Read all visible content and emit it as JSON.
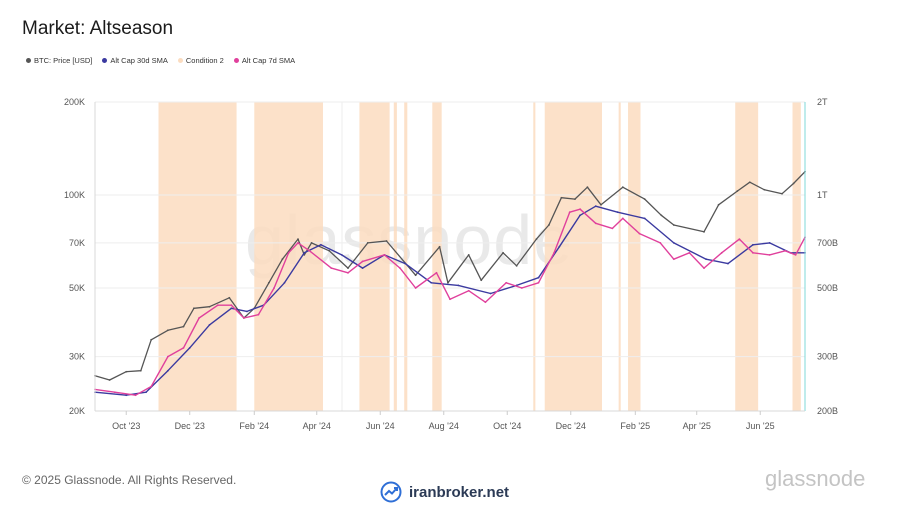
{
  "title": "Market: Altseason",
  "legend": [
    {
      "label": "BTC: Price [USD]",
      "color": "#555555"
    },
    {
      "label": "Alt Cap 30d SMA",
      "color": "#3b3aa0"
    },
    {
      "label": "Condition 2",
      "color": "#fbdcc0"
    },
    {
      "label": "Alt Cap 7d SMA",
      "color": "#e0409c"
    }
  ],
  "footer": {
    "copyright": "© 2025 Glassnode. All Rights Reserved.",
    "brand": "iranbroker.net",
    "logo": "glassnode",
    "watermark": "glassnode"
  },
  "chart_data": {
    "type": "line",
    "scale": "log",
    "x_range": [
      "2023-09-01",
      "2025-07-14"
    ],
    "x_ticks": [
      {
        "date": "2023-10-01",
        "label": "Oct '23"
      },
      {
        "date": "2023-12-01",
        "label": "Dec '23"
      },
      {
        "date": "2024-02-01",
        "label": "Feb '24"
      },
      {
        "date": "2024-04-01",
        "label": "Apr '24"
      },
      {
        "date": "2024-06-01",
        "label": "Jun '24"
      },
      {
        "date": "2024-08-01",
        "label": "Aug '24"
      },
      {
        "date": "2024-10-01",
        "label": "Oct '24"
      },
      {
        "date": "2024-12-01",
        "label": "Dec '24"
      },
      {
        "date": "2025-02-01",
        "label": "Feb '25"
      },
      {
        "date": "2025-04-01",
        "label": "Apr '25"
      },
      {
        "date": "2025-06-01",
        "label": "Jun '25"
      }
    ],
    "y_left": {
      "range": [
        20000,
        200000
      ],
      "ticks": [
        {
          "value": 20000,
          "label": "20K"
        },
        {
          "value": 30000,
          "label": "30K"
        },
        {
          "value": 50000,
          "label": "50K"
        },
        {
          "value": 70000,
          "label": "70K"
        },
        {
          "value": 100000,
          "label": "100K"
        },
        {
          "value": 200000,
          "label": "200K"
        }
      ]
    },
    "y_right": {
      "range": [
        200000000000,
        2000000000000
      ],
      "ticks": [
        {
          "value": 200000000000,
          "label": "200B"
        },
        {
          "value": 300000000000,
          "label": "300B"
        },
        {
          "value": 500000000000,
          "label": "500B"
        },
        {
          "value": 700000000000,
          "label": "700B"
        },
        {
          "value": 1000000000000,
          "label": "1T"
        },
        {
          "value": 2000000000000,
          "label": "2T"
        }
      ]
    },
    "condition_periods": [
      [
        "2023-11-01",
        "2024-01-15"
      ],
      [
        "2024-02-01",
        "2024-04-07"
      ],
      [
        "2024-05-12",
        "2024-06-10"
      ],
      [
        "2024-06-14",
        "2024-06-17"
      ],
      [
        "2024-06-24",
        "2024-06-27"
      ],
      [
        "2024-07-21",
        "2024-07-30"
      ],
      [
        "2024-10-26",
        "2024-10-28"
      ],
      [
        "2024-11-06",
        "2024-12-31"
      ],
      [
        "2025-01-16",
        "2025-01-18"
      ],
      [
        "2025-01-25",
        "2025-02-06"
      ],
      [
        "2025-05-08",
        "2025-05-30"
      ],
      [
        "2025-07-02",
        "2025-07-10"
      ]
    ],
    "series": [
      {
        "name": "BTC: Price [USD]",
        "axis": "left",
        "color": "#555555",
        "points": [
          [
            "2023-09-01",
            26000
          ],
          [
            "2023-09-15",
            25200
          ],
          [
            "2023-10-01",
            26800
          ],
          [
            "2023-10-15",
            27000
          ],
          [
            "2023-10-25",
            34000
          ],
          [
            "2023-11-10",
            36500
          ],
          [
            "2023-11-25",
            37500
          ],
          [
            "2023-12-05",
            43000
          ],
          [
            "2023-12-20",
            43500
          ],
          [
            "2024-01-08",
            46500
          ],
          [
            "2024-01-22",
            40000
          ],
          [
            "2024-02-01",
            43000
          ],
          [
            "2024-02-15",
            52000
          ],
          [
            "2024-02-28",
            62000
          ],
          [
            "2024-03-14",
            72000
          ],
          [
            "2024-03-20",
            64000
          ],
          [
            "2024-03-27",
            70000
          ],
          [
            "2024-04-13",
            66000
          ],
          [
            "2024-05-01",
            58000
          ],
          [
            "2024-05-20",
            70000
          ],
          [
            "2024-06-07",
            71000
          ],
          [
            "2024-07-05",
            55000
          ],
          [
            "2024-07-28",
            68000
          ],
          [
            "2024-08-05",
            52000
          ],
          [
            "2024-08-25",
            64000
          ],
          [
            "2024-09-06",
            53000
          ],
          [
            "2024-09-27",
            65000
          ],
          [
            "2024-10-10",
            59000
          ],
          [
            "2024-10-29",
            72000
          ],
          [
            "2024-11-10",
            80000
          ],
          [
            "2024-11-22",
            98000
          ],
          [
            "2024-12-05",
            97000
          ],
          [
            "2024-12-17",
            106000
          ],
          [
            "2024-12-30",
            93000
          ],
          [
            "2025-01-20",
            106000
          ],
          [
            "2025-02-10",
            97000
          ],
          [
            "2025-02-26",
            86000
          ],
          [
            "2025-03-10",
            80000
          ],
          [
            "2025-04-08",
            76000
          ],
          [
            "2025-04-22",
            93000
          ],
          [
            "2025-05-10",
            103000
          ],
          [
            "2025-05-22",
            110000
          ],
          [
            "2025-06-05",
            104000
          ],
          [
            "2025-06-22",
            101000
          ],
          [
            "2025-07-03",
            109000
          ],
          [
            "2025-07-14",
            119000
          ]
        ]
      },
      {
        "name": "Alt Cap 30d SMA",
        "axis": "right",
        "color": "#3b3aa0",
        "points": [
          [
            "2023-09-01",
            230000000000
          ],
          [
            "2023-10-01",
            225000000000
          ],
          [
            "2023-10-20",
            230000000000
          ],
          [
            "2023-11-10",
            270000000000
          ],
          [
            "2023-12-01",
            320000000000
          ],
          [
            "2023-12-20",
            380000000000
          ],
          [
            "2024-01-10",
            430000000000
          ],
          [
            "2024-01-25",
            420000000000
          ],
          [
            "2024-02-10",
            440000000000
          ],
          [
            "2024-03-01",
            520000000000
          ],
          [
            "2024-03-20",
            650000000000
          ],
          [
            "2024-04-05",
            690000000000
          ],
          [
            "2024-04-25",
            640000000000
          ],
          [
            "2024-05-15",
            580000000000
          ],
          [
            "2024-06-05",
            640000000000
          ],
          [
            "2024-06-25",
            600000000000
          ],
          [
            "2024-07-20",
            520000000000
          ],
          [
            "2024-08-15",
            510000000000
          ],
          [
            "2024-09-15",
            480000000000
          ],
          [
            "2024-10-10",
            510000000000
          ],
          [
            "2024-10-31",
            540000000000
          ],
          [
            "2024-11-20",
            680000000000
          ],
          [
            "2024-12-10",
            860000000000
          ],
          [
            "2024-12-25",
            920000000000
          ],
          [
            "2025-01-15",
            880000000000
          ],
          [
            "2025-02-10",
            840000000000
          ],
          [
            "2025-03-10",
            700000000000
          ],
          [
            "2025-04-10",
            620000000000
          ],
          [
            "2025-05-01",
            600000000000
          ],
          [
            "2025-05-25",
            690000000000
          ],
          [
            "2025-06-10",
            700000000000
          ],
          [
            "2025-06-30",
            650000000000
          ],
          [
            "2025-07-14",
            650000000000
          ]
        ]
      },
      {
        "name": "Alt Cap 7d SMA",
        "axis": "right",
        "color": "#e0409c",
        "points": [
          [
            "2023-09-01",
            235000000000
          ],
          [
            "2023-09-20",
            230000000000
          ],
          [
            "2023-10-10",
            225000000000
          ],
          [
            "2023-10-25",
            240000000000
          ],
          [
            "2023-11-10",
            300000000000
          ],
          [
            "2023-11-25",
            320000000000
          ],
          [
            "2023-12-10",
            400000000000
          ],
          [
            "2023-12-28",
            440000000000
          ],
          [
            "2024-01-10",
            440000000000
          ],
          [
            "2024-01-22",
            400000000000
          ],
          [
            "2024-02-05",
            410000000000
          ],
          [
            "2024-02-20",
            500000000000
          ],
          [
            "2024-03-05",
            650000000000
          ],
          [
            "2024-03-14",
            700000000000
          ],
          [
            "2024-03-25",
            660000000000
          ],
          [
            "2024-04-15",
            580000000000
          ],
          [
            "2024-05-01",
            560000000000
          ],
          [
            "2024-05-15",
            610000000000
          ],
          [
            "2024-06-05",
            640000000000
          ],
          [
            "2024-06-20",
            580000000000
          ],
          [
            "2024-07-05",
            500000000000
          ],
          [
            "2024-07-25",
            560000000000
          ],
          [
            "2024-08-07",
            460000000000
          ],
          [
            "2024-08-25",
            490000000000
          ],
          [
            "2024-09-10",
            450000000000
          ],
          [
            "2024-09-30",
            520000000000
          ],
          [
            "2024-10-15",
            500000000000
          ],
          [
            "2024-10-31",
            520000000000
          ],
          [
            "2024-11-15",
            650000000000
          ],
          [
            "2024-11-30",
            880000000000
          ],
          [
            "2024-12-10",
            900000000000
          ],
          [
            "2024-12-25",
            810000000000
          ],
          [
            "2025-01-10",
            780000000000
          ],
          [
            "2025-01-20",
            840000000000
          ],
          [
            "2025-02-05",
            750000000000
          ],
          [
            "2025-02-25",
            700000000000
          ],
          [
            "2025-03-10",
            620000000000
          ],
          [
            "2025-03-25",
            650000000000
          ],
          [
            "2025-04-08",
            580000000000
          ],
          [
            "2025-04-25",
            650000000000
          ],
          [
            "2025-05-12",
            720000000000
          ],
          [
            "2025-05-25",
            650000000000
          ],
          [
            "2025-06-10",
            640000000000
          ],
          [
            "2025-06-25",
            660000000000
          ],
          [
            "2025-07-05",
            640000000000
          ],
          [
            "2025-07-14",
            730000000000
          ]
        ]
      }
    ]
  }
}
